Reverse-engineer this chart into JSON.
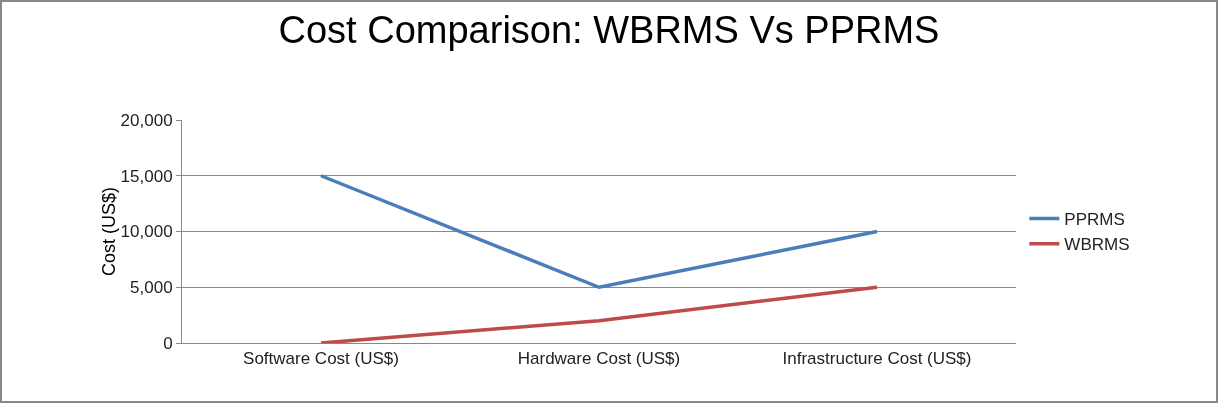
{
  "chart_data": {
    "type": "line",
    "title": "Cost Comparison: WBRMS Vs PPRMS",
    "ylabel": "Cost (US$)",
    "categories": [
      "Software Cost (US$)",
      "Hardware Cost (US$)",
      "Infrastructure Cost (US$)"
    ],
    "series": [
      {
        "name": "PPRMS",
        "color": "#4a7ebb",
        "values": [
          15000,
          5000,
          10000
        ]
      },
      {
        "name": "WBRMS",
        "color": "#be4b48",
        "values": [
          0,
          2000,
          5000
        ]
      }
    ],
    "ylim": [
      0,
      20000
    ],
    "yticks": [
      {
        "value": 0,
        "label": "0"
      },
      {
        "value": 5000,
        "label": "5,000"
      },
      {
        "value": 10000,
        "label": "10,000"
      },
      {
        "value": 15000,
        "label": "15,000"
      },
      {
        "value": 20000,
        "label": "20,000"
      }
    ],
    "grid": "y",
    "legend": "right",
    "marker": "none",
    "line_style": "solid"
  }
}
